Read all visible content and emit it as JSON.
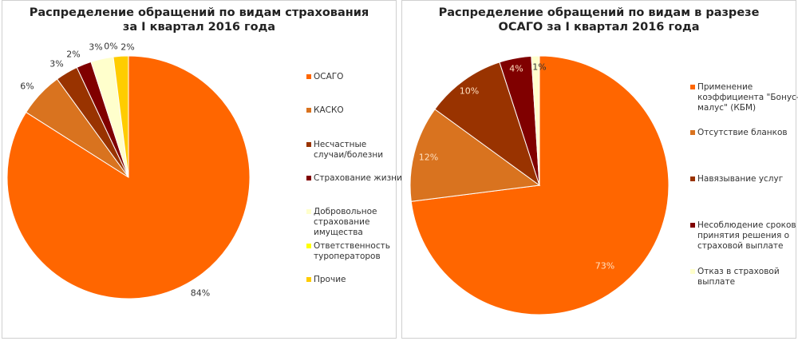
{
  "chart_data": [
    {
      "type": "pie",
      "title": "Распределение обращений по видам страхования за I квартал 2016 года",
      "title_lines": [
        "Распределение обращений по видам страхования",
        "за I квартал 2016 года"
      ],
      "categories": [
        "ОСАГО",
        "КАСКО",
        "Несчастные случаи/болезни",
        "Страхование жизни",
        "Добровольное страхование имущества",
        "Ответственность туроператоров",
        "Прочие"
      ],
      "values": [
        84,
        6,
        3,
        2,
        3,
        0,
        2
      ],
      "labels": [
        "84%",
        "6%",
        "3%",
        "2%",
        "3%",
        "0%",
        "2%"
      ],
      "colors": [
        "#FF6600",
        "#D9731F",
        "#993300",
        "#800000",
        "#FFFFCC",
        "#FFFF00",
        "#FFCC00"
      ],
      "legend_position": "right",
      "legend_labels": [
        "ОСАГО",
        "КАСКО",
        "Несчастные\nслучаи/болезни",
        "Страхование жизни",
        "Добровольное\nстрахование\nимущества",
        "Ответственность\nтуроператоров",
        "Прочие"
      ]
    },
    {
      "type": "pie",
      "title": "Распределение обращений по видам в разрезе ОСАГО за I квартал 2016 года",
      "title_lines": [
        "Распределение обращений по видам в разрезе",
        "ОСАГО за I квартал 2016 года"
      ],
      "categories": [
        "Применение коэффициента \"Бонус-малус\" (КБМ)",
        "Отсутствие бланков",
        "Навязывание услуг",
        "Несоблюдение сроков принятия решения о страховой выплате",
        "Отказ в страховой выплате"
      ],
      "values": [
        73,
        12,
        10,
        4,
        1
      ],
      "labels": [
        "73%",
        "12%",
        "10%",
        "4%",
        "1%"
      ],
      "colors": [
        "#FF6600",
        "#D9731F",
        "#993300",
        "#800000",
        "#FFFFCC"
      ],
      "legend_position": "right",
      "legend_labels": [
        "Применение\nкоэффициента \"Бонус-\nмалус\" (КБМ)",
        "Отсутствие бланков",
        "Навязывание услуг",
        "Несоблюдение сроков\nпринятия решения о\nстраховой выплате",
        "Отказ в страховой\nвыплате"
      ]
    }
  ],
  "left": {
    "title_line1": "Распределение обращений по видам страхования",
    "title_line2": "за I квартал 2016 года",
    "labels": {
      "osago": "84%",
      "kasko": "6%",
      "accident": "3%",
      "life": "2%",
      "property": "3%",
      "tour": "0%",
      "other": "2%"
    },
    "legend": [
      "ОСАГО",
      "КАСКО",
      "Несчастные\nслучаи/болезни",
      "Страхование жизни",
      "Добровольное\nстрахование\nимущества",
      "Ответственность\nтуроператоров",
      "Прочие"
    ]
  },
  "right": {
    "title_line1": "Распределение обращений по видам в разрезе",
    "title_line2": "ОСАГО за I квартал 2016 года",
    "labels": {
      "kbm": "73%",
      "blanks": "12%",
      "imposing": "10%",
      "deadlines": "4%",
      "refusal": "1%"
    },
    "legend": [
      "Применение\nкоэффициента \"Бонус-\nмалус\" (КБМ)",
      "Отсутствие бланков",
      "Навязывание услуг",
      "Несоблюдение сроков\nпринятия решения о\nстраховой выплате",
      "Отказ в страховой\nвыплате"
    ]
  }
}
